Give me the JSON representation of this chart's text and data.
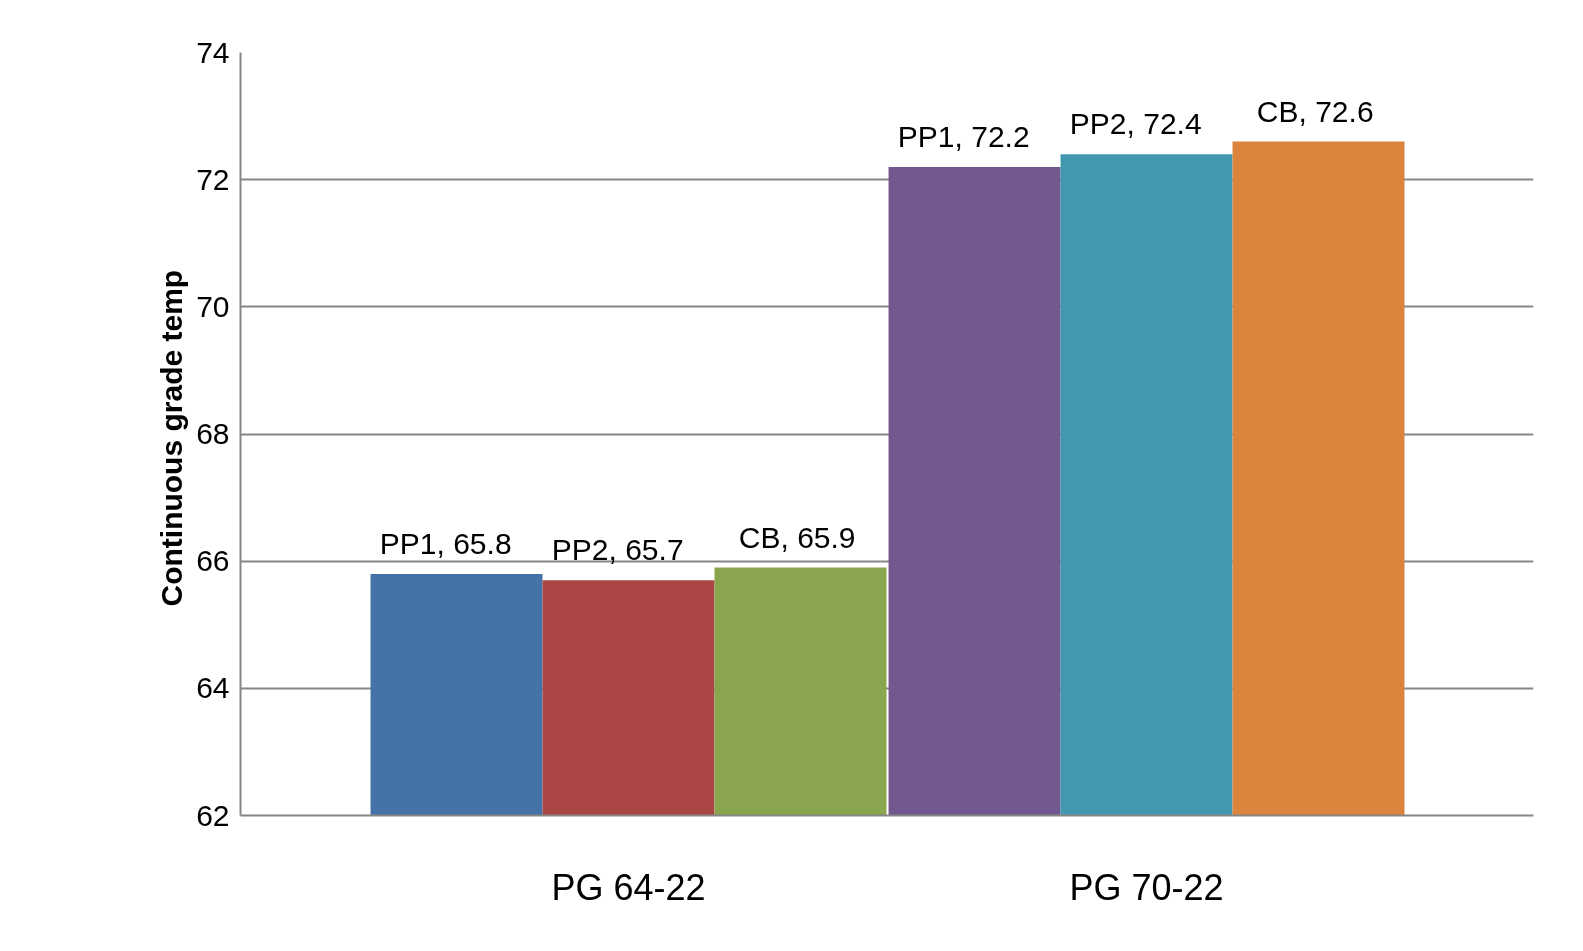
{
  "chart_data": {
    "type": "bar",
    "ylabel": "Continuous grade  temp",
    "categories": [
      "PG 64-22",
      "PG 70-22"
    ],
    "series": [
      {
        "name": "PP1",
        "colors": [
          "#4572a7",
          "#71588f"
        ],
        "values": [
          65.8,
          72.2
        ],
        "value_labels": [
          ", 65.8",
          ", 72.2"
        ]
      },
      {
        "name": "PP2",
        "colors": [
          "#aa4643",
          "#4198af"
        ],
        "values": [
          65.7,
          72.4
        ],
        "value_labels": [
          ", 65.7",
          ", 72.4"
        ]
      },
      {
        "name": "CB",
        "colors": [
          "#89a54e",
          "#db843d"
        ],
        "values": [
          65.9,
          72.6
        ],
        "value_labels": [
          ", 65.9",
          ", 72.6"
        ]
      }
    ],
    "ylim": [
      62,
      74
    ],
    "yticks": [
      62,
      64,
      66,
      68,
      70,
      72,
      74
    ],
    "grid": "y"
  }
}
